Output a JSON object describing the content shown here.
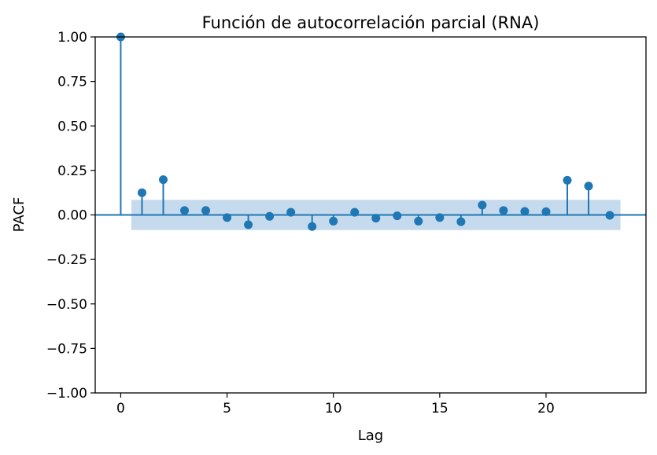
{
  "chart_data": {
    "type": "stem",
    "title": "Función de autocorrelación parcial (RNA)",
    "xlabel": "Lag",
    "ylabel": "PACF",
    "xlim": [
      -1.2,
      24.7
    ],
    "ylim": [
      -1.0,
      1.0
    ],
    "xticks": [
      0,
      5,
      10,
      15,
      20
    ],
    "xtick_labels": [
      "0",
      "5",
      "10",
      "15",
      "20"
    ],
    "yticks": [
      1.0,
      0.75,
      0.5,
      0.25,
      0.0,
      -0.25,
      -0.5,
      -0.75,
      -1.0
    ],
    "ytick_labels": [
      "1.00",
      "0.75",
      "0.50",
      "0.25",
      "0.00",
      "−0.25",
      "−0.50",
      "−0.75",
      "−1.00"
    ],
    "x": [
      0,
      1,
      2,
      3,
      4,
      5,
      6,
      7,
      8,
      9,
      10,
      11,
      12,
      13,
      14,
      15,
      16,
      17,
      18,
      19,
      20,
      21,
      22,
      23
    ],
    "values": [
      1.0,
      0.125,
      0.198,
      0.025,
      0.025,
      -0.015,
      -0.055,
      -0.008,
      0.015,
      -0.065,
      -0.035,
      0.015,
      -0.018,
      -0.005,
      -0.035,
      -0.015,
      -0.038,
      0.055,
      0.025,
      0.02,
      0.018,
      0.195,
      0.162,
      -0.002
    ],
    "confidence_band": {
      "x_start": 0.5,
      "x_end": 23.5,
      "lower": -0.085,
      "upper": 0.085
    },
    "grid": false,
    "colors": {
      "series": "#1f77b4",
      "band": "#c5dbed",
      "axis": "#000000"
    }
  }
}
